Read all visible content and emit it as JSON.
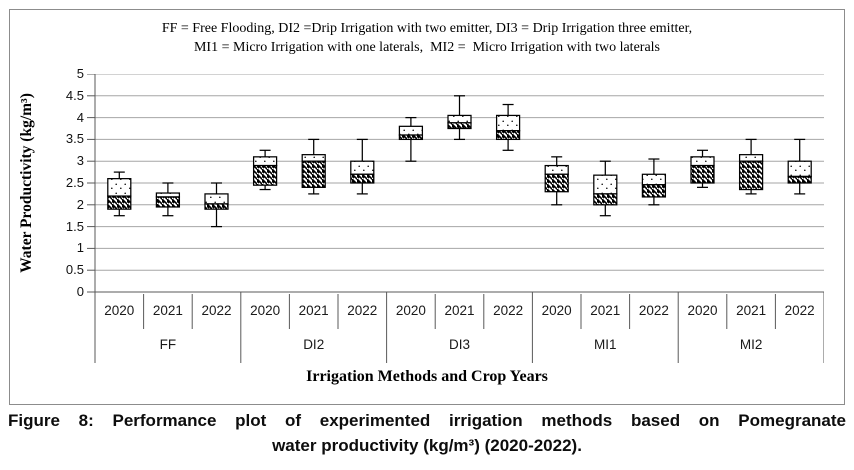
{
  "figure": {
    "note_line1": "FF = Free Flooding, DI2 =Drip Irrigation with two emitter, DI3 = Drip Irrigation three emitter,",
    "note_line2": "MI1 = Micro Irrigation with one laterals,  MI2 =  Micro Irrigation with two laterals"
  },
  "caption": {
    "line1": "Figure 8: Performance plot of experimented irrigation methods based on Pomegranate",
    "line2": "water productivity (kg/m³)  (2020-2022)."
  },
  "colors": {
    "gridline": "#a6a6a6",
    "axis": "#595959",
    "box_stroke": "#000000",
    "figure_border": "#8c8c8c",
    "background": "#ffffff"
  },
  "chart_data": {
    "type": "boxplot",
    "title": "",
    "ylabel": "Water Productivity (kg/m³)",
    "xlabel": "Irrigation Methods and Crop Years",
    "ylim": [
      0,
      5
    ],
    "ytick_step": 0.5,
    "ytick_labels": [
      "5",
      "4.5",
      "4",
      "3.5",
      "3",
      "2.5",
      "2",
      "1.5",
      "1",
      "0.5",
      "0"
    ],
    "grid": "horizontal",
    "legend_position": "none",
    "groups": [
      {
        "label": "FF",
        "years": [
          "2020",
          "2021",
          "2022"
        ],
        "boxes": [
          {
            "year": "2020",
            "whisker_low": 1.75,
            "q1": 1.9,
            "median": 2.2,
            "q3": 2.6,
            "whisker_high": 2.75
          },
          {
            "year": "2021",
            "whisker_low": 1.75,
            "q1": 1.95,
            "median": 2.18,
            "q3": 2.27,
            "whisker_high": 2.5
          },
          {
            "year": "2022",
            "whisker_low": 1.5,
            "q1": 1.9,
            "median": 2.02,
            "q3": 2.25,
            "whisker_high": 2.5
          }
        ]
      },
      {
        "label": "DI2",
        "years": [
          "2020",
          "2021",
          "2022"
        ],
        "boxes": [
          {
            "year": "2020",
            "whisker_low": 2.35,
            "q1": 2.45,
            "median": 2.9,
            "q3": 3.1,
            "whisker_high": 3.25
          },
          {
            "year": "2021",
            "whisker_low": 2.25,
            "q1": 2.4,
            "median": 3.0,
            "q3": 3.15,
            "whisker_high": 3.5
          },
          {
            "year": "2022",
            "whisker_low": 2.25,
            "q1": 2.5,
            "median": 2.7,
            "q3": 3.0,
            "whisker_high": 3.5
          }
        ]
      },
      {
        "label": "DI3",
        "years": [
          "2020",
          "2021",
          "2022"
        ],
        "boxes": [
          {
            "year": "2020",
            "whisker_low": 3.0,
            "q1": 3.5,
            "median": 3.6,
            "q3": 3.8,
            "whisker_high": 4.0
          },
          {
            "year": "2021",
            "whisker_low": 3.5,
            "q1": 3.75,
            "median": 3.88,
            "q3": 4.05,
            "whisker_high": 4.5
          },
          {
            "year": "2022",
            "whisker_low": 3.25,
            "q1": 3.5,
            "median": 3.7,
            "q3": 4.05,
            "whisker_high": 4.3
          }
        ]
      },
      {
        "label": "MI1",
        "years": [
          "2020",
          "2021",
          "2022"
        ],
        "boxes": [
          {
            "year": "2020",
            "whisker_low": 2.0,
            "q1": 2.3,
            "median": 2.7,
            "q3": 2.9,
            "whisker_high": 3.1
          },
          {
            "year": "2021",
            "whisker_low": 1.75,
            "q1": 2.0,
            "median": 2.25,
            "q3": 2.68,
            "whisker_high": 3.0
          },
          {
            "year": "2022",
            "whisker_low": 2.0,
            "q1": 2.18,
            "median": 2.46,
            "q3": 2.7,
            "whisker_high": 3.05
          }
        ]
      },
      {
        "label": "MI2",
        "years": [
          "2020",
          "2021",
          "2022"
        ],
        "boxes": [
          {
            "year": "2020",
            "whisker_low": 2.4,
            "q1": 2.5,
            "median": 2.9,
            "q3": 3.1,
            "whisker_high": 3.25
          },
          {
            "year": "2021",
            "whisker_low": 2.25,
            "q1": 2.35,
            "median": 3.0,
            "q3": 3.15,
            "whisker_high": 3.5
          },
          {
            "year": "2022",
            "whisker_low": 2.25,
            "q1": 2.5,
            "median": 2.65,
            "q3": 3.0,
            "whisker_high": 3.5
          }
        ]
      }
    ]
  }
}
